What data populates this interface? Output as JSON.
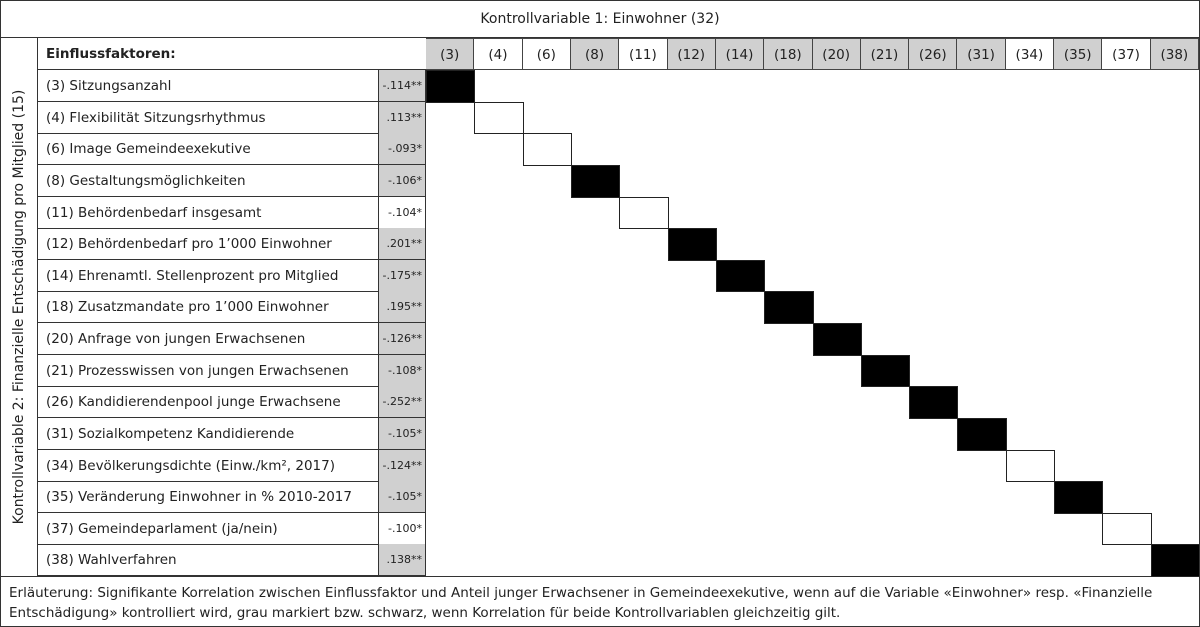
{
  "title": "Kontrollvariable 1: Einwohner (32)",
  "vertical_label": "Kontrollvariable 2: Finanzielle Entschädigung pro Mitglied (15)",
  "header_label": "Einflussfaktoren:",
  "colors": {
    "gray": "#d0d0d0",
    "black": "#000000",
    "white": "#ffffff"
  },
  "rows": [
    {
      "code": "(3)",
      "name": "(3) Sitzungsanzahl",
      "value": "-.114**",
      "ctrl1": true,
      "ctrl2": true
    },
    {
      "code": "(4)",
      "name": "(4) Flexibilität Sitzungsrhythmus",
      "value": ".113**",
      "ctrl1": true,
      "ctrl2": false
    },
    {
      "code": "(6)",
      "name": "(6) Image Gemeindeexekutive",
      "value": "-.093*",
      "ctrl1": true,
      "ctrl2": false
    },
    {
      "code": "(8)",
      "name": "(8) Gestaltungsmöglichkeiten",
      "value": "-.106*",
      "ctrl1": true,
      "ctrl2": true
    },
    {
      "code": "(11)",
      "name": "(11) Behördenbedarf insgesamt",
      "value": "-.104*",
      "ctrl1": false,
      "ctrl2": false
    },
    {
      "code": "(12)",
      "name": "(12) Behördenbedarf pro 1’000 Einwohner",
      "value": ".201**",
      "ctrl1": true,
      "ctrl2": true
    },
    {
      "code": "(14)",
      "name": "(14) Ehrenamtl. Stellenprozent pro Mitglied",
      "value": "-.175**",
      "ctrl1": true,
      "ctrl2": true
    },
    {
      "code": "(18)",
      "name": "(18) Zusatzmandate pro 1’000 Einwohner",
      "value": ".195**",
      "ctrl1": true,
      "ctrl2": true
    },
    {
      "code": "(20)",
      "name": "(20) Anfrage von jungen Erwachsenen",
      "value": "-.126**",
      "ctrl1": true,
      "ctrl2": true
    },
    {
      "code": "(21)",
      "name": "(21) Prozesswissen von jungen Erwachsenen",
      "value": "-.108*",
      "ctrl1": true,
      "ctrl2": true
    },
    {
      "code": "(26)",
      "name": "(26) Kandidierendenpool junge Erwachsene",
      "value": "-.252**",
      "ctrl1": true,
      "ctrl2": true
    },
    {
      "code": "(31)",
      "name": "(31) Sozialkompetenz Kandidierende",
      "value": "-.105*",
      "ctrl1": true,
      "ctrl2": true
    },
    {
      "code": "(34)",
      "name": "(34) Bevölkerungsdichte (Einw./km², 2017)",
      "value": "-.124**",
      "ctrl1": true,
      "ctrl2": false
    },
    {
      "code": "(35)",
      "name": "(35) Veränderung Einwohner in % 2010-2017",
      "value": "-.105*",
      "ctrl1": true,
      "ctrl2": true
    },
    {
      "code": "(37)",
      "name": "(37) Gemeindeparlament (ja/nein)",
      "value": "-.100*",
      "ctrl1": false,
      "ctrl2": false
    },
    {
      "code": "(38)",
      "name": "(38) Wahlverfahren",
      "value": ".138**",
      "ctrl1": true,
      "ctrl2": true
    }
  ],
  "footer": "Erläuterung: Signifikante Korrelation zwischen Einflussfaktor und Anteil junger Erwachsener in Gemeindeexekutive, wenn auf die Variable «Einwohner» resp. «Finanzielle Entschädigung» kontrolliert wird, grau markiert bzw. schwarz, wenn Korrelation für beide Kontrollvariablen gleichzeitig gilt."
}
